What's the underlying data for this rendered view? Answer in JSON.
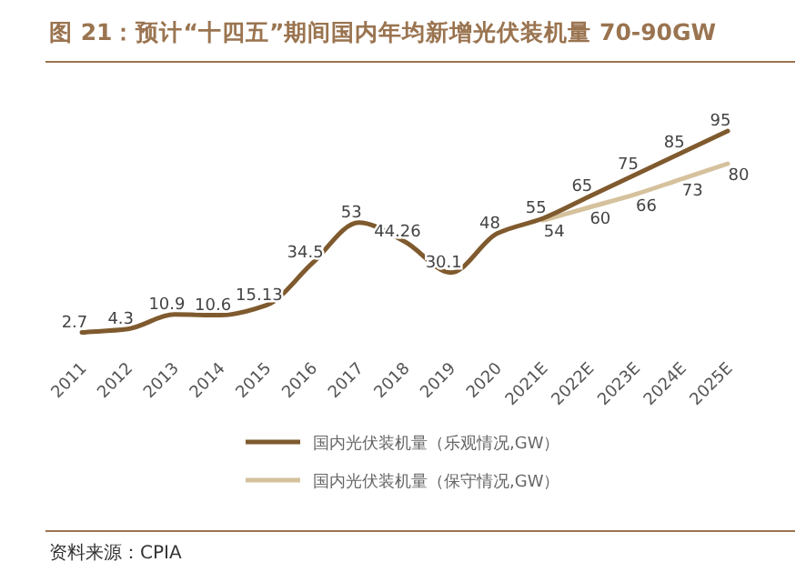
{
  "chart_data": {
    "type": "line",
    "title": "图 21：预计“十四五”期间国内年均新增光伏装机量 70-90GW",
    "categories": [
      "2011",
      "2012",
      "2013",
      "2014",
      "2015",
      "2016",
      "2017",
      "2018",
      "2019",
      "2020",
      "2021E",
      "2022E",
      "2023E",
      "2024E",
      "2025E"
    ],
    "series": [
      {
        "name": "国内光伏装机量（乐观情况,GW）",
        "color": "#7f5a2e",
        "values": [
          2.7,
          4.3,
          10.9,
          10.6,
          15.13,
          34.5,
          53,
          44.26,
          30.1,
          48,
          55,
          65,
          75,
          85,
          95
        ]
      },
      {
        "name": "国内光伏装机量（保守情况,GW）",
        "color": "#d5c29d",
        "values": [
          null,
          null,
          null,
          null,
          null,
          null,
          null,
          null,
          null,
          null,
          54,
          60,
          66,
          73,
          80
        ]
      }
    ],
    "data_labels": true,
    "legend": "bottom",
    "grid": false,
    "marker": "none",
    "line_style": "solid",
    "annotations": [
      "资料来源：CPIA"
    ]
  }
}
